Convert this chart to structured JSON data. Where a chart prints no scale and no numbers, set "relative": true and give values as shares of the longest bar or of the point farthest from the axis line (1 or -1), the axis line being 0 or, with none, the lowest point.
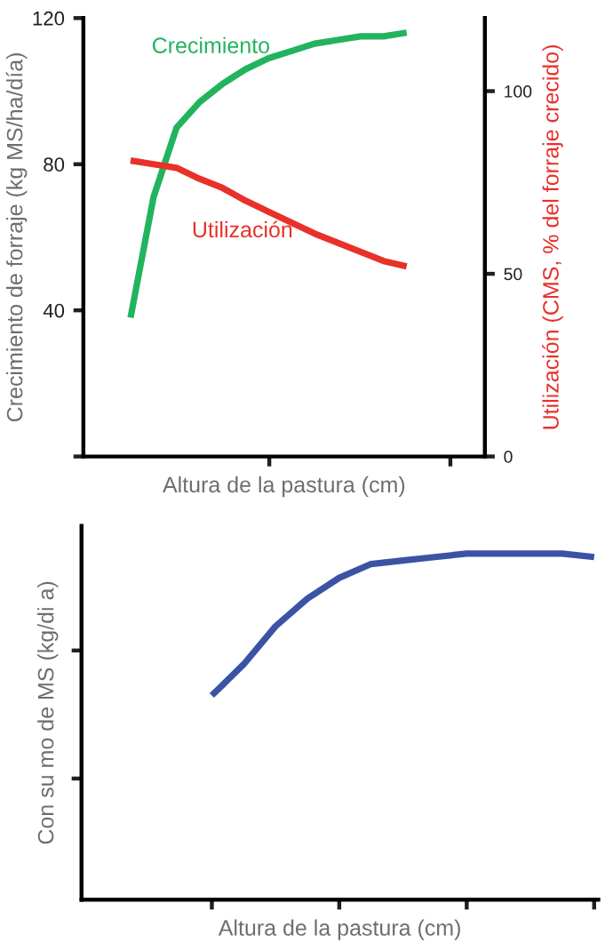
{
  "chart_data": [
    {
      "type": "line",
      "xlabel": "Altura de la pastura (cm)",
      "ylabel": "Crecimiento de forraje (kg MS/ha/día)",
      "y2label": "Utilización (CMS, % del forraje crecido)",
      "categories": [
        null,
        null,
        null,
        null,
        null,
        null,
        null,
        null,
        null,
        null,
        null,
        null,
        null
      ],
      "series": [
        {
          "name": "Crecimiento",
          "color": "#22b35e",
          "values": [
            38,
            71,
            90,
            97,
            102,
            106,
            109,
            111,
            113,
            114,
            115,
            115,
            116
          ]
        },
        {
          "name": "Utilización",
          "color": "#e8312a",
          "axis": "y2",
          "values": [
            81,
            80,
            79,
            76,
            73.5,
            70,
            67,
            64,
            61,
            58.5,
            56,
            53.5,
            52
          ]
        }
      ],
      "ylim": [
        0,
        120
      ],
      "yticks": [
        {
          "value": 0,
          "label": null
        },
        40,
        80,
        120
      ],
      "y2lim": [
        0,
        120
      ],
      "y2ticks": [
        0,
        50,
        100
      ],
      "tick_labels": "y",
      "grid": false,
      "legend": false,
      "marker": "none",
      "line_style": "solid"
    },
    {
      "type": "line",
      "xlabel": "Altura de la pastura (cm)",
      "ylabel": "Con su mo de MS (kg/di a)",
      "relative": true,
      "categories": [
        null,
        null,
        null,
        null,
        null,
        null,
        null,
        null,
        null,
        null,
        null,
        null,
        null
      ],
      "series": [
        {
          "color": "#3a53a4",
          "values": [
            0.59,
            0.68,
            0.79,
            0.87,
            0.93,
            0.97,
            0.98,
            0.99,
            1.0,
            1.0,
            1.0,
            1.0,
            0.99
          ]
        }
      ],
      "tick_labels": false,
      "grid": false,
      "legend": false,
      "marker": "none",
      "line_style": "solid"
    }
  ]
}
